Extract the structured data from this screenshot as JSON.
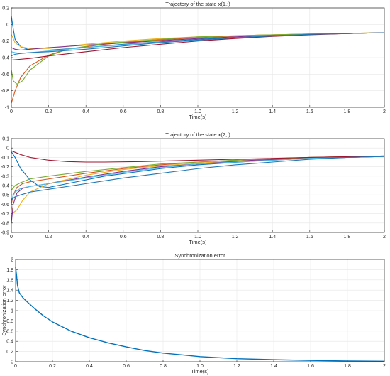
{
  "chart_data": [
    {
      "type": "line",
      "title": "Trajectory of the state x(1,:)",
      "xlabel": "Time(s)",
      "ylabel": "",
      "xlim": [
        0,
        2
      ],
      "ylim": [
        -1,
        0.2
      ],
      "xticks": [
        "0",
        "0.2",
        "0.4",
        "0.6",
        "0.8",
        "1.0",
        "1.2",
        "1.4",
        "1.6",
        "1.8",
        "2"
      ],
      "yticks": [
        "-1",
        "-0.8",
        "-0.6",
        "-0.4",
        "-0.2",
        "0",
        "0.2"
      ],
      "grid": true,
      "series": [
        {
          "color": "#0072BD",
          "values": [
            [
              0,
              0.1
            ],
            [
              0.01,
              -0.05
            ],
            [
              0.02,
              -0.18
            ],
            [
              0.05,
              -0.27
            ],
            [
              0.1,
              -0.31
            ],
            [
              0.2,
              -0.31
            ],
            [
              0.4,
              -0.28
            ],
            [
              0.6,
              -0.24
            ],
            [
              0.8,
              -0.21
            ],
            [
              1.0,
              -0.18
            ],
            [
              1.2,
              -0.16
            ],
            [
              1.4,
              -0.14
            ],
            [
              1.6,
              -0.12
            ],
            [
              1.8,
              -0.11
            ],
            [
              2.0,
              -0.1
            ]
          ]
        },
        {
          "color": "#D95319",
          "values": [
            [
              0,
              -0.95
            ],
            [
              0.02,
              -0.8
            ],
            [
              0.05,
              -0.64
            ],
            [
              0.1,
              -0.5
            ],
            [
              0.2,
              -0.37
            ],
            [
              0.3,
              -0.3
            ],
            [
              0.5,
              -0.24
            ],
            [
              0.7,
              -0.2
            ],
            [
              1.0,
              -0.16
            ],
            [
              1.3,
              -0.13
            ],
            [
              1.6,
              -0.115
            ],
            [
              2.0,
              -0.1
            ]
          ]
        },
        {
          "color": "#EDB120",
          "values": [
            [
              0,
              -0.12
            ],
            [
              0.02,
              -0.22
            ],
            [
              0.05,
              -0.27
            ],
            [
              0.1,
              -0.29
            ],
            [
              0.2,
              -0.29
            ],
            [
              0.4,
              -0.24
            ],
            [
              0.6,
              -0.2
            ],
            [
              0.8,
              -0.17
            ],
            [
              1.0,
              -0.15
            ],
            [
              1.3,
              -0.13
            ],
            [
              1.6,
              -0.115
            ],
            [
              2.0,
              -0.1
            ]
          ]
        },
        {
          "color": "#7E2F8E",
          "values": [
            [
              0,
              -0.28
            ],
            [
              0.02,
              -0.3
            ],
            [
              0.05,
              -0.31
            ],
            [
              0.1,
              -0.3
            ],
            [
              0.2,
              -0.28
            ],
            [
              0.4,
              -0.25
            ],
            [
              0.7,
              -0.21
            ],
            [
              1.0,
              -0.17
            ],
            [
              1.3,
              -0.14
            ],
            [
              1.6,
              -0.12
            ],
            [
              2.0,
              -0.1
            ]
          ]
        },
        {
          "color": "#77AC30",
          "values": [
            [
              0,
              -0.55
            ],
            [
              0.01,
              -0.68
            ],
            [
              0.03,
              -0.72
            ],
            [
              0.06,
              -0.68
            ],
            [
              0.1,
              -0.55
            ],
            [
              0.2,
              -0.38
            ],
            [
              0.3,
              -0.3
            ],
            [
              0.5,
              -0.23
            ],
            [
              0.8,
              -0.18
            ],
            [
              1.0,
              -0.15
            ],
            [
              1.3,
              -0.13
            ],
            [
              1.6,
              -0.115
            ],
            [
              2.0,
              -0.1
            ]
          ]
        },
        {
          "color": "#4DBEEE",
          "values": [
            [
              0,
              -0.33
            ],
            [
              0.02,
              -0.34
            ],
            [
              0.05,
              -0.35
            ],
            [
              0.1,
              -0.34
            ],
            [
              0.2,
              -0.32
            ],
            [
              0.4,
              -0.28
            ],
            [
              0.7,
              -0.23
            ],
            [
              1.0,
              -0.19
            ],
            [
              1.3,
              -0.15
            ],
            [
              1.6,
              -0.12
            ],
            [
              2.0,
              -0.1
            ]
          ]
        },
        {
          "color": "#A2142F",
          "values": [
            [
              0,
              -0.43
            ],
            [
              0.1,
              -0.41
            ],
            [
              0.2,
              -0.38
            ],
            [
              0.4,
              -0.33
            ],
            [
              0.6,
              -0.28
            ],
            [
              0.8,
              -0.24
            ],
            [
              1.0,
              -0.2
            ],
            [
              1.2,
              -0.17
            ],
            [
              1.4,
              -0.145
            ],
            [
              1.6,
              -0.125
            ],
            [
              1.8,
              -0.11
            ],
            [
              2.0,
              -0.1
            ]
          ]
        },
        {
          "color": "#1F77B4",
          "values": [
            [
              0,
              -0.38
            ],
            [
              0.02,
              -0.36
            ],
            [
              0.05,
              -0.35
            ],
            [
              0.1,
              -0.34
            ],
            [
              0.2,
              -0.33
            ],
            [
              0.4,
              -0.3
            ],
            [
              0.6,
              -0.26
            ],
            [
              0.8,
              -0.22
            ],
            [
              1.0,
              -0.19
            ],
            [
              1.2,
              -0.16
            ],
            [
              1.4,
              -0.14
            ],
            [
              1.6,
              -0.12
            ],
            [
              1.8,
              -0.11
            ],
            [
              2.0,
              -0.1
            ]
          ]
        }
      ]
    },
    {
      "type": "line",
      "title": "Trajectory of the state x(2,:)",
      "xlabel": "Time(s)",
      "ylabel": "",
      "xlim": [
        0,
        2
      ],
      "ylim": [
        -0.9,
        0.1
      ],
      "xticks": [
        "0",
        "0.2",
        "0.4",
        "0.6",
        "0.8",
        "1.0",
        "1.2",
        "1.4",
        "1.6",
        "1.8",
        "2"
      ],
      "yticks": [
        "-0.9",
        "-0.8",
        "-0.7",
        "-0.6",
        "-0.5",
        "-0.4",
        "-0.3",
        "-0.2",
        "-0.1",
        "0",
        "0.1"
      ],
      "grid": true,
      "series": [
        {
          "color": "#0072BD",
          "values": [
            [
              0,
              -0.04
            ],
            [
              0.02,
              -0.1
            ],
            [
              0.05,
              -0.22
            ],
            [
              0.1,
              -0.34
            ],
            [
              0.15,
              -0.41
            ],
            [
              0.2,
              -0.42
            ],
            [
              0.3,
              -0.38
            ],
            [
              0.5,
              -0.3
            ],
            [
              0.8,
              -0.22
            ],
            [
              1.0,
              -0.18
            ],
            [
              1.3,
              -0.14
            ],
            [
              1.6,
              -0.11
            ],
            [
              2.0,
              -0.09
            ]
          ]
        },
        {
          "color": "#D95319",
          "values": [
            [
              0,
              -0.6
            ],
            [
              0.01,
              -0.5
            ],
            [
              0.03,
              -0.42
            ],
            [
              0.06,
              -0.38
            ],
            [
              0.1,
              -0.36
            ],
            [
              0.2,
              -0.33
            ],
            [
              0.4,
              -0.27
            ],
            [
              0.6,
              -0.22
            ],
            [
              0.8,
              -0.18
            ],
            [
              1.0,
              -0.15
            ],
            [
              1.3,
              -0.12
            ],
            [
              1.6,
              -0.1
            ],
            [
              2.0,
              -0.085
            ]
          ]
        },
        {
          "color": "#EDB120",
          "values": [
            [
              0,
              -0.62
            ],
            [
              0.01,
              -0.69
            ],
            [
              0.03,
              -0.66
            ],
            [
              0.06,
              -0.56
            ],
            [
              0.1,
              -0.47
            ],
            [
              0.2,
              -0.38
            ],
            [
              0.4,
              -0.29
            ],
            [
              0.6,
              -0.23
            ],
            [
              0.8,
              -0.19
            ],
            [
              1.0,
              -0.16
            ],
            [
              1.3,
              -0.13
            ],
            [
              1.6,
              -0.105
            ],
            [
              2.0,
              -0.085
            ]
          ]
        },
        {
          "color": "#7E2F8E",
          "values": [
            [
              0,
              -0.8
            ],
            [
              0.01,
              -0.6
            ],
            [
              0.03,
              -0.48
            ],
            [
              0.06,
              -0.43
            ],
            [
              0.1,
              -0.41
            ],
            [
              0.2,
              -0.38
            ],
            [
              0.4,
              -0.31
            ],
            [
              0.6,
              -0.25
            ],
            [
              0.8,
              -0.2
            ],
            [
              1.0,
              -0.17
            ],
            [
              1.3,
              -0.13
            ],
            [
              1.6,
              -0.11
            ],
            [
              2.0,
              -0.09
            ]
          ]
        },
        {
          "color": "#77AC30",
          "values": [
            [
              0,
              -0.45
            ],
            [
              0.02,
              -0.4
            ],
            [
              0.05,
              -0.37
            ],
            [
              0.1,
              -0.33
            ],
            [
              0.2,
              -0.3
            ],
            [
              0.4,
              -0.25
            ],
            [
              0.6,
              -0.21
            ],
            [
              0.8,
              -0.17
            ],
            [
              1.0,
              -0.15
            ],
            [
              1.3,
              -0.12
            ],
            [
              1.6,
              -0.1
            ],
            [
              2.0,
              -0.085
            ]
          ]
        },
        {
          "color": "#4DBEEE",
          "values": [
            [
              0,
              -0.55
            ],
            [
              0.02,
              -0.47
            ],
            [
              0.05,
              -0.43
            ],
            [
              0.1,
              -0.41
            ],
            [
              0.2,
              -0.38
            ],
            [
              0.4,
              -0.32
            ],
            [
              0.6,
              -0.26
            ],
            [
              0.8,
              -0.21
            ],
            [
              1.0,
              -0.17
            ],
            [
              1.3,
              -0.14
            ],
            [
              1.6,
              -0.11
            ],
            [
              2.0,
              -0.09
            ]
          ]
        },
        {
          "color": "#A2142F",
          "values": [
            [
              0,
              -0.03
            ],
            [
              0.05,
              -0.07
            ],
            [
              0.1,
              -0.1
            ],
            [
              0.2,
              -0.13
            ],
            [
              0.3,
              -0.145
            ],
            [
              0.4,
              -0.15
            ],
            [
              0.5,
              -0.15
            ],
            [
              0.7,
              -0.145
            ],
            [
              1.0,
              -0.13
            ],
            [
              1.3,
              -0.115
            ],
            [
              1.6,
              -0.1
            ],
            [
              2.0,
              -0.085
            ]
          ]
        },
        {
          "color": "#1F77B4",
          "values": [
            [
              0,
              -0.55
            ],
            [
              0.02,
              -0.52
            ],
            [
              0.05,
              -0.5
            ],
            [
              0.1,
              -0.47
            ],
            [
              0.2,
              -0.44
            ],
            [
              0.4,
              -0.38
            ],
            [
              0.6,
              -0.32
            ],
            [
              0.8,
              -0.27
            ],
            [
              1.0,
              -0.22
            ],
            [
              1.2,
              -0.18
            ],
            [
              1.4,
              -0.15
            ],
            [
              1.6,
              -0.12
            ],
            [
              1.8,
              -0.1
            ],
            [
              2.0,
              -0.09
            ]
          ]
        }
      ]
    },
    {
      "type": "line",
      "title": "Synchronization error",
      "xlabel": "Time(s)",
      "ylabel": "Synchronization error",
      "xlim": [
        0,
        2
      ],
      "ylim": [
        0,
        2
      ],
      "xticks": [
        "0",
        "0.2",
        "0.4",
        "0.6",
        "0.8",
        "1.0",
        "1.2",
        "1.4",
        "1.6",
        "1.8",
        "2"
      ],
      "yticks": [
        "0",
        "0.2",
        "0.4",
        "0.6",
        "0.8",
        "1",
        "1.2",
        "1.4",
        "1.6",
        "1.8",
        "2"
      ],
      "grid": true,
      "series": [
        {
          "color": "#0072BD",
          "values": [
            [
              0,
              1.85
            ],
            [
              0.005,
              1.7
            ],
            [
              0.01,
              1.5
            ],
            [
              0.02,
              1.35
            ],
            [
              0.04,
              1.25
            ],
            [
              0.06,
              1.18
            ],
            [
              0.1,
              1.05
            ],
            [
              0.15,
              0.9
            ],
            [
              0.2,
              0.78
            ],
            [
              0.3,
              0.6
            ],
            [
              0.4,
              0.47
            ],
            [
              0.5,
              0.37
            ],
            [
              0.6,
              0.29
            ],
            [
              0.7,
              0.22
            ],
            [
              0.8,
              0.17
            ],
            [
              1.0,
              0.1
            ],
            [
              1.2,
              0.06
            ],
            [
              1.4,
              0.04
            ],
            [
              1.6,
              0.025
            ],
            [
              1.8,
              0.015
            ],
            [
              2.0,
              0.01
            ]
          ]
        }
      ]
    }
  ]
}
